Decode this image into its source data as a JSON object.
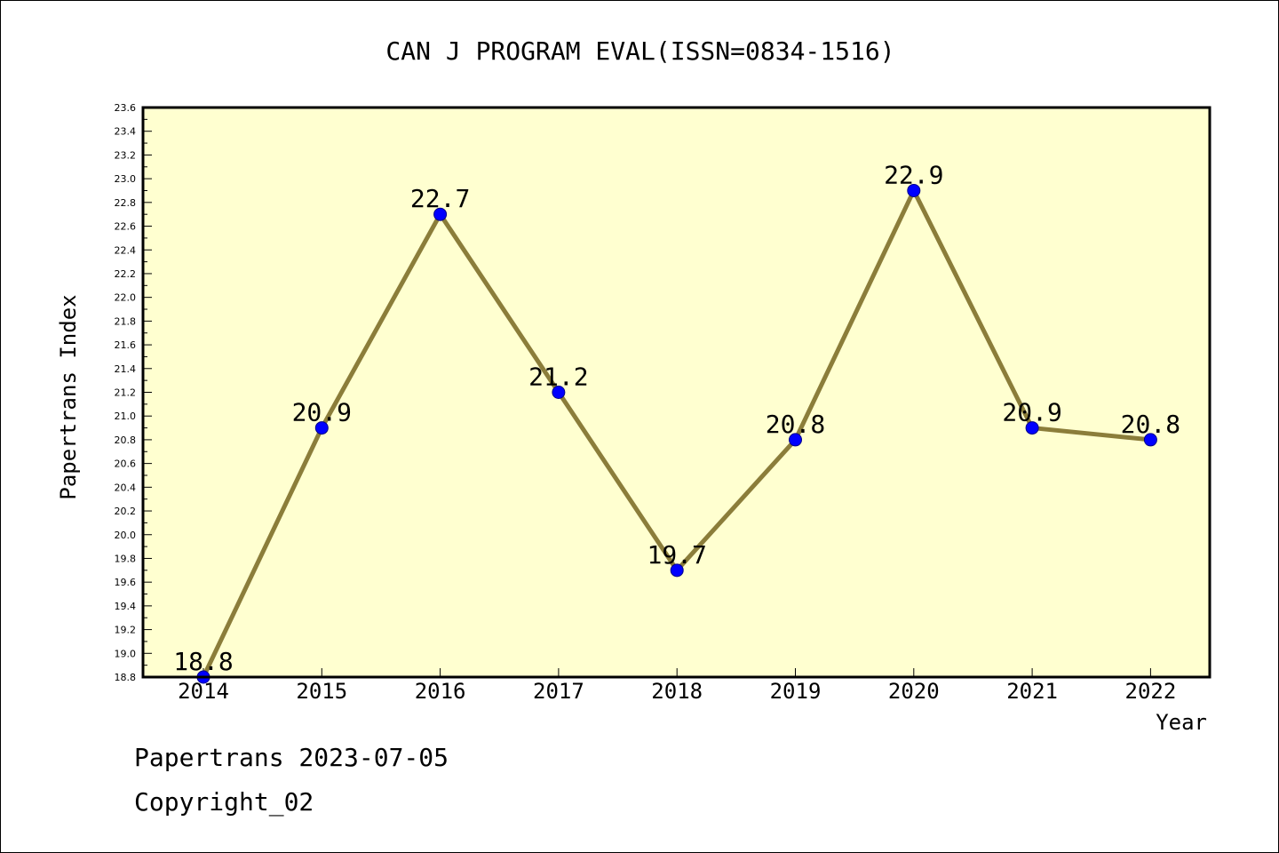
{
  "chart_data": {
    "type": "line",
    "title": "CAN J PROGRAM EVAL(ISSN=0834-1516)",
    "xlabel": "Year",
    "ylabel": "Papertrans Index",
    "categories": [
      "2014",
      "2015",
      "2016",
      "2017",
      "2018",
      "2019",
      "2020",
      "2021",
      "2022"
    ],
    "values": [
      18.8,
      20.9,
      22.7,
      21.2,
      19.7,
      20.8,
      22.9,
      20.9,
      20.8
    ],
    "data_labels": [
      "18.8",
      "20.9",
      "22.7",
      "21.2",
      "19.7",
      "20.8",
      "22.9",
      "20.9",
      "20.8"
    ],
    "ylim": [
      18.8,
      23.6
    ],
    "y_ticks": [
      "18.8",
      "19.0",
      "19.2",
      "19.4",
      "19.6",
      "19.8",
      "20.0",
      "20.2",
      "20.4",
      "20.6",
      "20.8",
      "21.0",
      "21.2",
      "21.4",
      "21.6",
      "21.8",
      "22.0",
      "22.2",
      "22.4",
      "22.6",
      "22.8",
      "23.0",
      "23.2",
      "23.4",
      "23.6"
    ],
    "grid": false,
    "colors": {
      "plot_background": "#ffffd0",
      "line": "#8b7d3a",
      "marker": "#0000ff"
    }
  },
  "footer": {
    "date_line": "Papertrans 2023-07-05",
    "copyright": "Copyright_02"
  }
}
